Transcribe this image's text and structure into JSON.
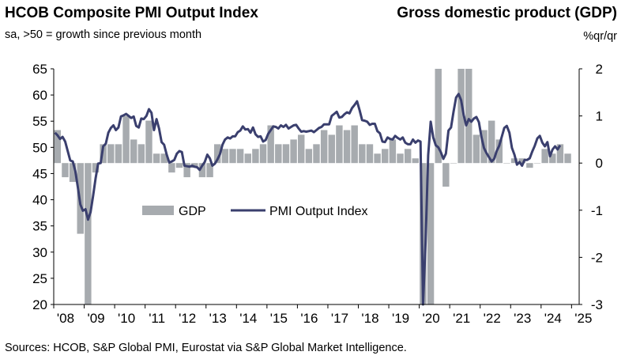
{
  "header": {
    "title": "HCOB Composite PMI Output Index",
    "subtitle": "sa, >50 = growth  since previous month",
    "title_right": "Gross domestic product (GDP)",
    "unit_right": "%qr/qr"
  },
  "footer": {
    "source": "Sources: HCOB, S&P Global PMI, Eurostat via S&P Global Market Intelligence."
  },
  "chart_data": {
    "type": "bar+line",
    "title": "HCOB Composite PMI Output Index",
    "title_right": "Gross domestic product (GDP)",
    "x_tick_labels": [
      "'08",
      "'09",
      "'10",
      "'11",
      "'12",
      "'13",
      "'14",
      "'15",
      "'16",
      "'17",
      "'18",
      "'19",
      "'20",
      "'21",
      "'22",
      "'23",
      "'24",
      "'25"
    ],
    "y_left": {
      "ticks": [
        65,
        60,
        55,
        50,
        45,
        40,
        35,
        30,
        25,
        20
      ],
      "range": [
        20,
        65
      ]
    },
    "y_right": {
      "ticks": [
        "2",
        "1",
        "0",
        "-1",
        "-2",
        "-3"
      ],
      "range": [
        -3,
        2
      ]
    },
    "legend": {
      "placement": "center-left",
      "entries": [
        "GDP",
        "PMI Output Index"
      ]
    },
    "colors": {
      "gdp_bar": "#a7abaf",
      "pmi_line": "#3a3f6e",
      "axis": "#000000"
    },
    "gdp_series": {
      "name": "GDP",
      "axis": "right",
      "quarters": [
        "2008Q1",
        "2008Q2",
        "2008Q3",
        "2008Q4",
        "2009Q1",
        "2009Q2",
        "2009Q3",
        "2009Q4",
        "2010Q1",
        "2010Q2",
        "2010Q3",
        "2010Q4",
        "2011Q1",
        "2011Q2",
        "2011Q3",
        "2011Q4",
        "2012Q1",
        "2012Q2",
        "2012Q3",
        "2012Q4",
        "2013Q1",
        "2013Q2",
        "2013Q3",
        "2013Q4",
        "2014Q1",
        "2014Q2",
        "2014Q3",
        "2014Q4",
        "2015Q1",
        "2015Q2",
        "2015Q3",
        "2015Q4",
        "2016Q1",
        "2016Q2",
        "2016Q3",
        "2016Q4",
        "2017Q1",
        "2017Q2",
        "2017Q3",
        "2017Q4",
        "2018Q1",
        "2018Q2",
        "2018Q3",
        "2018Q4",
        "2019Q1",
        "2019Q2",
        "2019Q3",
        "2019Q4",
        "2020Q1",
        "2020Q2",
        "2020Q3",
        "2020Q4",
        "2021Q1",
        "2021Q2",
        "2021Q3",
        "2021Q4",
        "2022Q1",
        "2022Q2",
        "2022Q3",
        "2022Q4",
        "2023Q1",
        "2023Q2",
        "2023Q3",
        "2023Q4",
        "2024Q1",
        "2024Q2",
        "2024Q3",
        "2024Q4"
      ],
      "values": [
        0.7,
        -0.3,
        -0.4,
        -1.5,
        -3.0,
        -0.2,
        0.4,
        0.4,
        0.4,
        1.0,
        0.5,
        0.4,
        0.9,
        0.2,
        0.2,
        -0.2,
        -0.1,
        -0.3,
        -0.1,
        -0.3,
        -0.3,
        0.4,
        0.3,
        0.3,
        0.3,
        0.2,
        0.3,
        0.4,
        0.8,
        0.4,
        0.4,
        0.5,
        0.6,
        0.3,
        0.4,
        0.7,
        0.6,
        0.8,
        0.7,
        0.8,
        0.4,
        0.4,
        0.2,
        0.3,
        0.5,
        0.2,
        0.3,
        0.1,
        -3.6,
        -11.7,
        12.6,
        -0.5,
        0.0,
        2.1,
        2.1,
        0.6,
        0.7,
        0.9,
        0.5,
        0.0,
        0.1,
        0.1,
        -0.1,
        0.0,
        0.3,
        0.2,
        0.4,
        0.2
      ]
    },
    "pmi_series": {
      "name": "PMI Output Index",
      "axis": "left",
      "monthly_start": "2008-01",
      "values": [
        52.8,
        52.3,
        51.6,
        52.0,
        51.1,
        49.3,
        47.5,
        47.3,
        45.5,
        42.4,
        39.1,
        37.9,
        38.2,
        36.2,
        37.6,
        40.7,
        44.1,
        46.9,
        47.0,
        50.2,
        50.7,
        52.8,
        53.7,
        54.2,
        53.3,
        53.8,
        55.9,
        56.1,
        56.4,
        56.0,
        55.6,
        55.9,
        54.1,
        53.8,
        55.5,
        55.4,
        56.0,
        57.3,
        56.6,
        53.3,
        55.4,
        53.6,
        51.0,
        50.5,
        48.6,
        47.1,
        47.3,
        47.6,
        48.8,
        49.3,
        49.1,
        46.5,
        46.4,
        46.3,
        46.5,
        46.3,
        46.2,
        45.7,
        46.5,
        47.2,
        48.6,
        47.9,
        46.5,
        46.9,
        47.7,
        48.7,
        50.5,
        51.5,
        51.9,
        51.7,
        52.1,
        52.1,
        52.9,
        53.2,
        54.0,
        53.4,
        53.5,
        52.8,
        53.8,
        52.5,
        52.0,
        52.1,
        51.1,
        51.4,
        52.6,
        53.3,
        54.0,
        53.9,
        53.6,
        54.2,
        53.9,
        54.3,
        53.6,
        53.9,
        54.2,
        54.3,
        53.6,
        53.0,
        53.1,
        53.0,
        53.1,
        53.2,
        52.9,
        53.3,
        53.7,
        53.9,
        54.4,
        54.4,
        54.4,
        56.0,
        56.4,
        56.8,
        55.7,
        55.8,
        56.3,
        56.7,
        56.5,
        57.5,
        58.1,
        58.8,
        57.1,
        55.2,
        55.1,
        54.9,
        54.3,
        54.5,
        54.5,
        53.1,
        52.7,
        51.1,
        51.0,
        51.9,
        51.6,
        51.5,
        52.2,
        51.8,
        51.5,
        51.9,
        50.9,
        50.6,
        50.6,
        51.5,
        50.9,
        51.3,
        51.1,
        13.6,
        31.9,
        48.5,
        54.9,
        51.9,
        50.4,
        50.0,
        49.1,
        47.8,
        48.8,
        53.2,
        53.8,
        56.8,
        59.5,
        60.2,
        59.0,
        56.2,
        54.2,
        55.4,
        54.9,
        55.5,
        55.8,
        54.8,
        52.0,
        49.9,
        48.9,
        48.1,
        47.3,
        47.8,
        49.3,
        50.3,
        52.0,
        53.7,
        54.1,
        52.8,
        49.9,
        48.6,
        46.7,
        47.2,
        46.5,
        47.6,
        47.6,
        47.9,
        49.2,
        50.3,
        51.7,
        52.2,
        50.9,
        50.2,
        51.0,
        48.3,
        49.6,
        50.2,
        49.6,
        50.4
      ]
    }
  }
}
